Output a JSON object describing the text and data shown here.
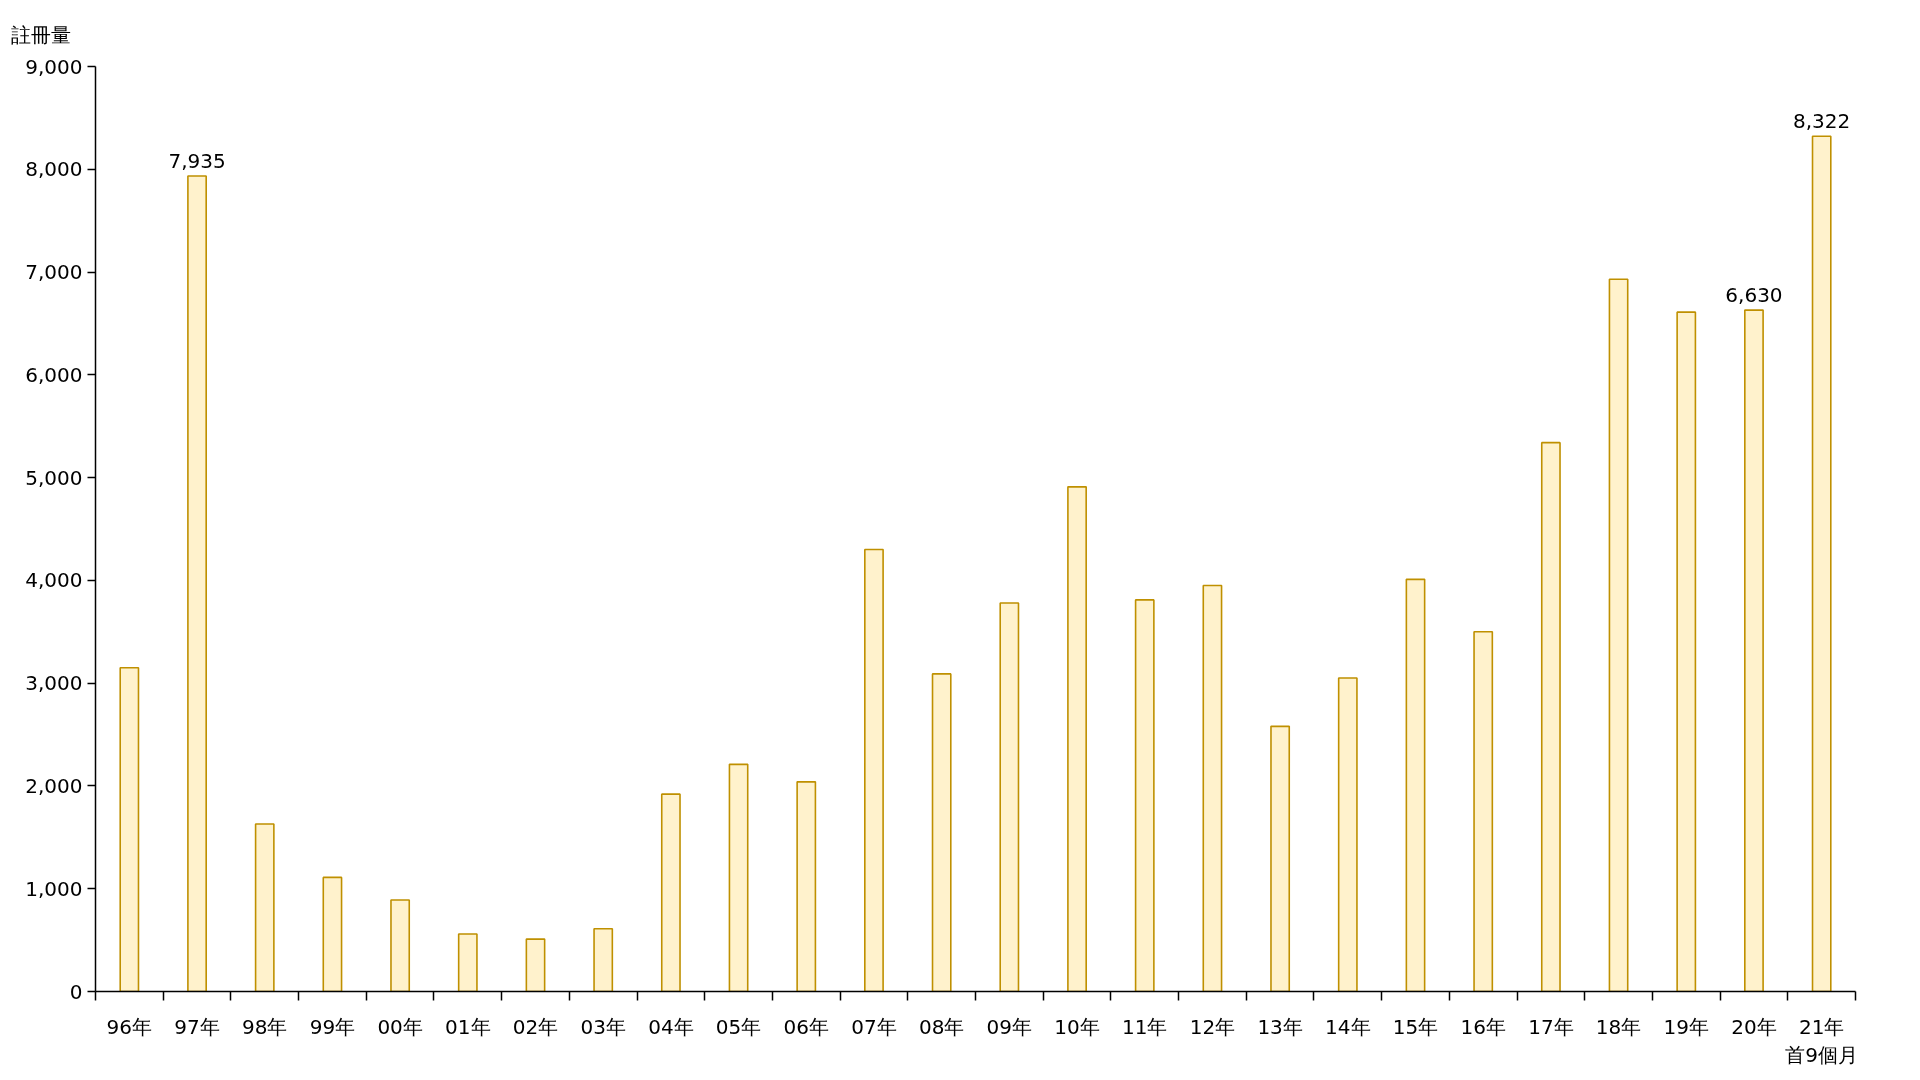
{
  "chart_data": {
    "type": "bar",
    "ylabel": "註冊量",
    "categories": [
      "96年",
      "97年",
      "98年",
      "99年",
      "00年",
      "01年",
      "02年",
      "03年",
      "04年",
      "05年",
      "06年",
      "07年",
      "08年",
      "09年",
      "10年",
      "11年",
      "12年",
      "13年",
      "14年",
      "15年",
      "16年",
      "17年",
      "18年",
      "19年",
      "20年",
      "21年首9個月"
    ],
    "values": [
      3150,
      7935,
      1630,
      1110,
      890,
      560,
      510,
      610,
      1920,
      2210,
      2040,
      4300,
      3090,
      3780,
      4910,
      3810,
      3950,
      2580,
      3050,
      4010,
      3500,
      5340,
      6930,
      6610,
      6630,
      8322
    ],
    "value_labels": [
      null,
      "7,935",
      null,
      null,
      null,
      null,
      null,
      null,
      null,
      null,
      null,
      null,
      null,
      null,
      null,
      null,
      null,
      null,
      null,
      null,
      null,
      null,
      null,
      null,
      "6,630",
      "8,322"
    ],
    "color": "#fff2cc",
    "ylim": [
      0,
      9000
    ],
    "yticks": [
      0,
      {
        "value": 1000,
        "label": "1,000"
      },
      {
        "value": 2000,
        "label": "2,000"
      },
      {
        "value": 3000,
        "label": "3,000"
      },
      {
        "value": 4000,
        "label": "4,000"
      },
      {
        "value": 5000,
        "label": "5,000"
      },
      {
        "value": 6000,
        "label": "6,000"
      },
      {
        "value": 7000,
        "label": "7,000"
      },
      {
        "value": 8000,
        "label": "8,000"
      },
      {
        "value": 9000,
        "label": "9,000"
      }
    ]
  }
}
